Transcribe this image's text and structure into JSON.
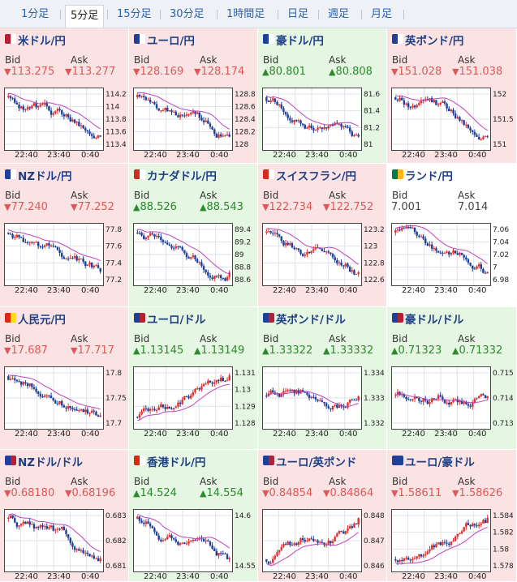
{
  "tabs": [
    "1分足",
    "5分足",
    "15分足",
    "30分足",
    "1時間足",
    "日足",
    "週足",
    "月足"
  ],
  "active_tab": "5分足",
  "labels": {
    "bid": "Bid",
    "ask": "Ask"
  },
  "time_labels": [
    "22:40",
    "23:40",
    "0:40"
  ],
  "colors": {
    "down_bg": "#fbe3e4",
    "up_bg": "#e5f6e3",
    "down_text": "#e05757",
    "up_text": "#2b8a2b",
    "candle_up": "#e03030",
    "candle_down": "#1f3f9a",
    "ma_line": "#c040c0"
  },
  "pairs": [
    {
      "name": "米ドル/円",
      "dir": "down",
      "bid": "113.275",
      "ask": "113.277",
      "flag": [
        "#b22234",
        "#ffffff"
      ],
      "trend": "down",
      "ticks": [
        "114.2",
        "114",
        "113.8",
        "113.6",
        "113.4"
      ]
    },
    {
      "name": "ユーロ/円",
      "dir": "down",
      "bid": "128.169",
      "ask": "128.174",
      "flag": [
        "#1f3f9a",
        "#ffffff"
      ],
      "trend": "down",
      "ticks": [
        "128.8",
        "128.6",
        "128.4",
        "128.2",
        "128"
      ]
    },
    {
      "name": "豪ドル/円",
      "dir": "up",
      "bid": "80.801",
      "ask": "80.808",
      "flag": [
        "#1f3f9a",
        "#ffffff"
      ],
      "trend": "down",
      "ticks": [
        "81.6",
        "81.4",
        "81.2",
        "81"
      ]
    },
    {
      "name": "英ポンド/円",
      "dir": "down",
      "bid": "151.028",
      "ask": "151.038",
      "flag": [
        "#1f3f9a",
        "#ffffff"
      ],
      "trend": "down",
      "ticks": [
        "152",
        "151.5",
        "151"
      ]
    },
    {
      "name": "NZドル/円",
      "dir": "down",
      "bid": "77.240",
      "ask": "77.252",
      "flag": [
        "#1f3f9a",
        "#ffffff"
      ],
      "trend": "down",
      "ticks": [
        "77.8",
        "77.6",
        "77.4",
        "77.2"
      ]
    },
    {
      "name": "カナダドル/円",
      "dir": "up",
      "bid": "88.526",
      "ask": "88.543",
      "flag": [
        "#d52b1e",
        "#ffffff"
      ],
      "trend": "down",
      "ticks": [
        "89.4",
        "89.2",
        "89",
        "88.8",
        "88.6"
      ]
    },
    {
      "name": "スイスフラン/円",
      "dir": "down",
      "bid": "122.734",
      "ask": "122.752",
      "flag": [
        "#d52b1e",
        "#ffffff"
      ],
      "trend": "down",
      "ticks": [
        "123.2",
        "123",
        "122.8",
        "122.6"
      ]
    },
    {
      "name": "ランド/円",
      "dir": "flat",
      "bid": "7.001",
      "ask": "7.014",
      "flag": [
        "#007a4d",
        "#ffb612"
      ],
      "trend": "down",
      "ticks": [
        "7.06",
        "7.04",
        "7.02",
        "7",
        "6.98"
      ]
    },
    {
      "name": "人民元/円",
      "dir": "down",
      "bid": "17.687",
      "ask": "17.717",
      "flag": [
        "#de2910",
        "#ffde00"
      ],
      "trend": "down",
      "ticks": [
        "17.8",
        "17.75",
        "17.7"
      ]
    },
    {
      "name": "ユーロ/ドル",
      "dir": "up",
      "bid": "1.13145",
      "ask": "1.13149",
      "flag": [
        "#1f3f9a",
        "#b22234"
      ],
      "trend": "up",
      "ticks": [
        "1.131",
        "1.13",
        "1.129",
        "1.128"
      ]
    },
    {
      "name": "英ポンド/ドル",
      "dir": "up",
      "bid": "1.33322",
      "ask": "1.33332",
      "flag": [
        "#1f3f9a",
        "#b22234"
      ],
      "trend": "flat",
      "ticks": [
        "1.334",
        "1.333",
        "1.332"
      ]
    },
    {
      "name": "豪ドル/ドル",
      "dir": "up",
      "bid": "0.71323",
      "ask": "0.71332",
      "flag": [
        "#1f3f9a",
        "#b22234"
      ],
      "trend": "flat",
      "ticks": [
        "0.715",
        "0.714",
        "0.713"
      ]
    },
    {
      "name": "NZドル/ドル",
      "dir": "down",
      "bid": "0.68180",
      "ask": "0.68196",
      "flag": [
        "#1f3f9a",
        "#b22234"
      ],
      "trend": "down",
      "ticks": [
        "0.683",
        "0.682",
        "0.681"
      ]
    },
    {
      "name": "香港ドル/円",
      "dir": "up",
      "bid": "14.524",
      "ask": "14.554",
      "flag": [
        "#de2910",
        "#ffffff"
      ],
      "trend": "down",
      "ticks": [
        "14.6",
        "14.55"
      ]
    },
    {
      "name": "ユーロ/英ポンド",
      "dir": "down",
      "bid": "0.84854",
      "ask": "0.84864",
      "flag": [
        "#1f3f9a",
        "#b22234"
      ],
      "trend": "up",
      "ticks": [
        "0.848",
        "0.847",
        "0.846"
      ]
    },
    {
      "name": "ユーロ/豪ドル",
      "dir": "down",
      "bid": "1.58611",
      "ask": "1.58626",
      "flag": [
        "#1f3f9a",
        "#1f3f9a"
      ],
      "trend": "up",
      "ticks": [
        "1.584",
        "1.582",
        "1.58",
        "1.578"
      ]
    }
  ]
}
